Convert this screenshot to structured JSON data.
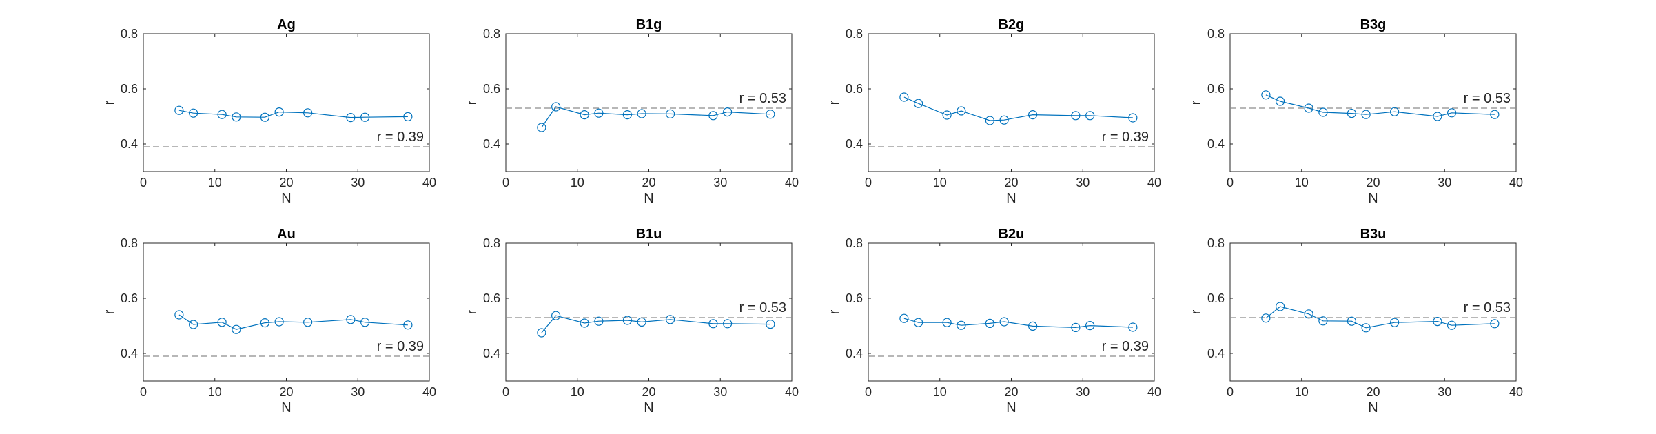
{
  "chart_data": [
    {
      "type": "line",
      "title": "Ag",
      "xlabel": "N",
      "ylabel": "r",
      "xlim": [
        0,
        40
      ],
      "ylim": [
        0.3,
        0.8
      ],
      "xticks": [
        "0",
        "10",
        "20",
        "30",
        "40"
      ],
      "yticks": [
        "0.4",
        "0.6",
        "0.8"
      ],
      "x": [
        5,
        7,
        11,
        13,
        17,
        19,
        23,
        29,
        31,
        37
      ],
      "series": [
        {
          "values": [
            0.522,
            0.512,
            0.507,
            0.498,
            0.497,
            0.516,
            0.513,
            0.496,
            0.497,
            0.499
          ]
        }
      ],
      "reference_line": {
        "y": 0.39,
        "label": "r = 0.39"
      }
    },
    {
      "type": "line",
      "title": "B1g",
      "xlabel": "N",
      "ylabel": "r",
      "xlim": [
        0,
        40
      ],
      "ylim": [
        0.3,
        0.8
      ],
      "xticks": [
        "0",
        "10",
        "20",
        "30",
        "40"
      ],
      "yticks": [
        "0.4",
        "0.6",
        "0.8"
      ],
      "x": [
        5,
        7,
        11,
        13,
        17,
        19,
        23,
        29,
        31,
        37
      ],
      "series": [
        {
          "values": [
            0.46,
            0.535,
            0.506,
            0.512,
            0.506,
            0.51,
            0.509,
            0.503,
            0.516,
            0.508
          ]
        }
      ],
      "reference_line": {
        "y": 0.53,
        "label": "r = 0.53"
      }
    },
    {
      "type": "line",
      "title": "B2g",
      "xlabel": "N",
      "ylabel": "r",
      "xlim": [
        0,
        40
      ],
      "ylim": [
        0.3,
        0.8
      ],
      "xticks": [
        "0",
        "10",
        "20",
        "30",
        "40"
      ],
      "yticks": [
        "0.4",
        "0.6",
        "0.8"
      ],
      "x": [
        5,
        7,
        11,
        13,
        17,
        19,
        23,
        29,
        31,
        37
      ],
      "series": [
        {
          "values": [
            0.57,
            0.547,
            0.505,
            0.52,
            0.485,
            0.487,
            0.506,
            0.503,
            0.503,
            0.495
          ]
        }
      ],
      "reference_line": {
        "y": 0.39,
        "label": "r = 0.39"
      }
    },
    {
      "type": "line",
      "title": "B3g",
      "xlabel": "N",
      "ylabel": "r",
      "xlim": [
        0,
        40
      ],
      "ylim": [
        0.3,
        0.8
      ],
      "xticks": [
        "0",
        "10",
        "20",
        "30",
        "40"
      ],
      "yticks": [
        "0.4",
        "0.6",
        "0.8"
      ],
      "x": [
        5,
        7,
        11,
        13,
        17,
        19,
        23,
        29,
        31,
        37
      ],
      "series": [
        {
          "values": [
            0.578,
            0.555,
            0.53,
            0.515,
            0.511,
            0.507,
            0.517,
            0.5,
            0.513,
            0.507
          ]
        }
      ],
      "reference_line": {
        "y": 0.53,
        "label": "r = 0.53"
      }
    },
    {
      "type": "line",
      "title": "Au",
      "xlabel": "N",
      "ylabel": "r",
      "xlim": [
        0,
        40
      ],
      "ylim": [
        0.3,
        0.8
      ],
      "xticks": [
        "0",
        "10",
        "20",
        "30",
        "40"
      ],
      "yticks": [
        "0.4",
        "0.6",
        "0.8"
      ],
      "x": [
        5,
        7,
        11,
        13,
        17,
        19,
        23,
        29,
        31,
        37
      ],
      "series": [
        {
          "values": [
            0.54,
            0.505,
            0.513,
            0.487,
            0.511,
            0.515,
            0.513,
            0.523,
            0.513,
            0.503
          ]
        }
      ],
      "reference_line": {
        "y": 0.39,
        "label": "r = 0.39"
      }
    },
    {
      "type": "line",
      "title": "B1u",
      "xlabel": "N",
      "ylabel": "r",
      "xlim": [
        0,
        40
      ],
      "ylim": [
        0.3,
        0.8
      ],
      "xticks": [
        "0",
        "10",
        "20",
        "30",
        "40"
      ],
      "yticks": [
        "0.4",
        "0.6",
        "0.8"
      ],
      "x": [
        5,
        7,
        11,
        13,
        17,
        19,
        23,
        29,
        31,
        37
      ],
      "series": [
        {
          "values": [
            0.475,
            0.537,
            0.51,
            0.517,
            0.52,
            0.514,
            0.523,
            0.508,
            0.508,
            0.506
          ]
        }
      ],
      "reference_line": {
        "y": 0.53,
        "label": "r = 0.53"
      }
    },
    {
      "type": "line",
      "title": "B2u",
      "xlabel": "N",
      "ylabel": "r",
      "xlim": [
        0,
        40
      ],
      "ylim": [
        0.3,
        0.8
      ],
      "xticks": [
        "0",
        "10",
        "20",
        "30",
        "40"
      ],
      "yticks": [
        "0.4",
        "0.6",
        "0.8"
      ],
      "x": [
        5,
        7,
        11,
        13,
        17,
        19,
        23,
        29,
        31,
        37
      ],
      "series": [
        {
          "values": [
            0.527,
            0.512,
            0.512,
            0.502,
            0.509,
            0.515,
            0.499,
            0.494,
            0.501,
            0.495
          ]
        }
      ],
      "reference_line": {
        "y": 0.39,
        "label": "r = 0.39"
      }
    },
    {
      "type": "line",
      "title": "B3u",
      "xlabel": "N",
      "ylabel": "r",
      "xlim": [
        0,
        40
      ],
      "ylim": [
        0.3,
        0.8
      ],
      "xticks": [
        "0",
        "10",
        "20",
        "30",
        "40"
      ],
      "yticks": [
        "0.4",
        "0.6",
        "0.8"
      ],
      "x": [
        5,
        7,
        11,
        13,
        17,
        19,
        23,
        29,
        31,
        37
      ],
      "series": [
        {
          "values": [
            0.528,
            0.57,
            0.543,
            0.518,
            0.517,
            0.493,
            0.512,
            0.516,
            0.502,
            0.508
          ]
        }
      ],
      "reference_line": {
        "y": 0.53,
        "label": "r = 0.53"
      }
    }
  ],
  "colors": {
    "series": "#0072BD",
    "reference": "#8c8c8c",
    "axes": "#262626",
    "text": "#262626"
  }
}
